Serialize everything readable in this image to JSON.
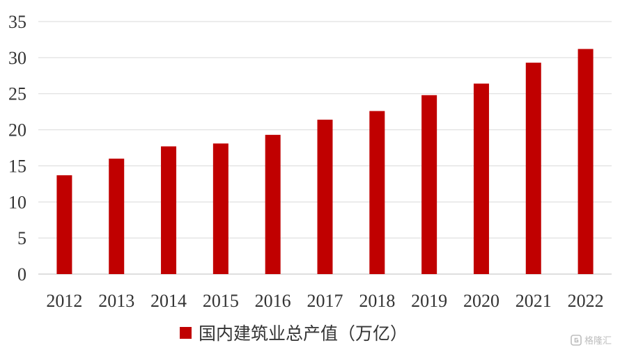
{
  "chart_data": {
    "type": "bar",
    "categories": [
      "2012",
      "2013",
      "2014",
      "2015",
      "2016",
      "2017",
      "2018",
      "2019",
      "2020",
      "2021",
      "2022"
    ],
    "series": [
      {
        "name": "国内建筑业总产值（万亿）",
        "values": [
          13.7,
          16.0,
          17.7,
          18.1,
          19.3,
          21.4,
          22.6,
          24.8,
          26.4,
          29.3,
          31.2
        ],
        "color": "#c00000"
      }
    ],
    "title": "",
    "xlabel": "",
    "ylabel": "",
    "ylim": [
      0,
      35
    ],
    "yticks": [
      "0",
      "5",
      "10",
      "15",
      "20",
      "25",
      "30",
      "35"
    ],
    "grid": true,
    "legend_position": "bottom"
  },
  "watermark": {
    "text": "格隆汇",
    "icon": "glh-logo-icon"
  }
}
